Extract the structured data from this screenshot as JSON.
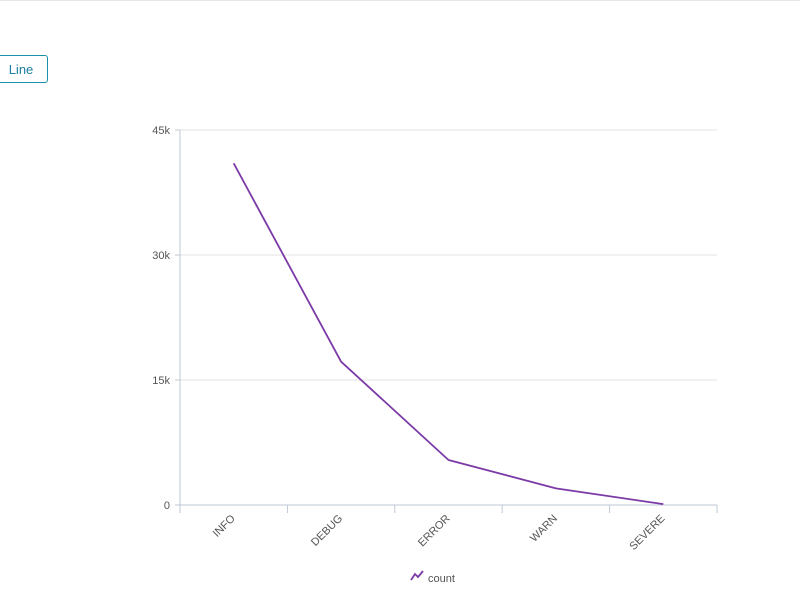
{
  "toolbar": {
    "chart_type_label": "Line"
  },
  "colors": {
    "series": "#7b3aa6",
    "grid": "#e3e3e3",
    "axis": "#bfc7d4",
    "button": "#1a8fa8"
  },
  "chart_data": {
    "type": "line",
    "categories": [
      "INFO",
      "DEBUG",
      "ERROR",
      "WARN",
      "SEVERE"
    ],
    "series": [
      {
        "name": "count",
        "values": [
          41000,
          17200,
          5400,
          2000,
          100
        ]
      }
    ],
    "ylim": [
      0,
      45000
    ],
    "yticks": [
      0,
      15000,
      30000,
      45000
    ],
    "ytick_labels": [
      "0",
      "15k",
      "30k",
      "45k"
    ],
    "grid": true,
    "legend": "bottom-center"
  }
}
